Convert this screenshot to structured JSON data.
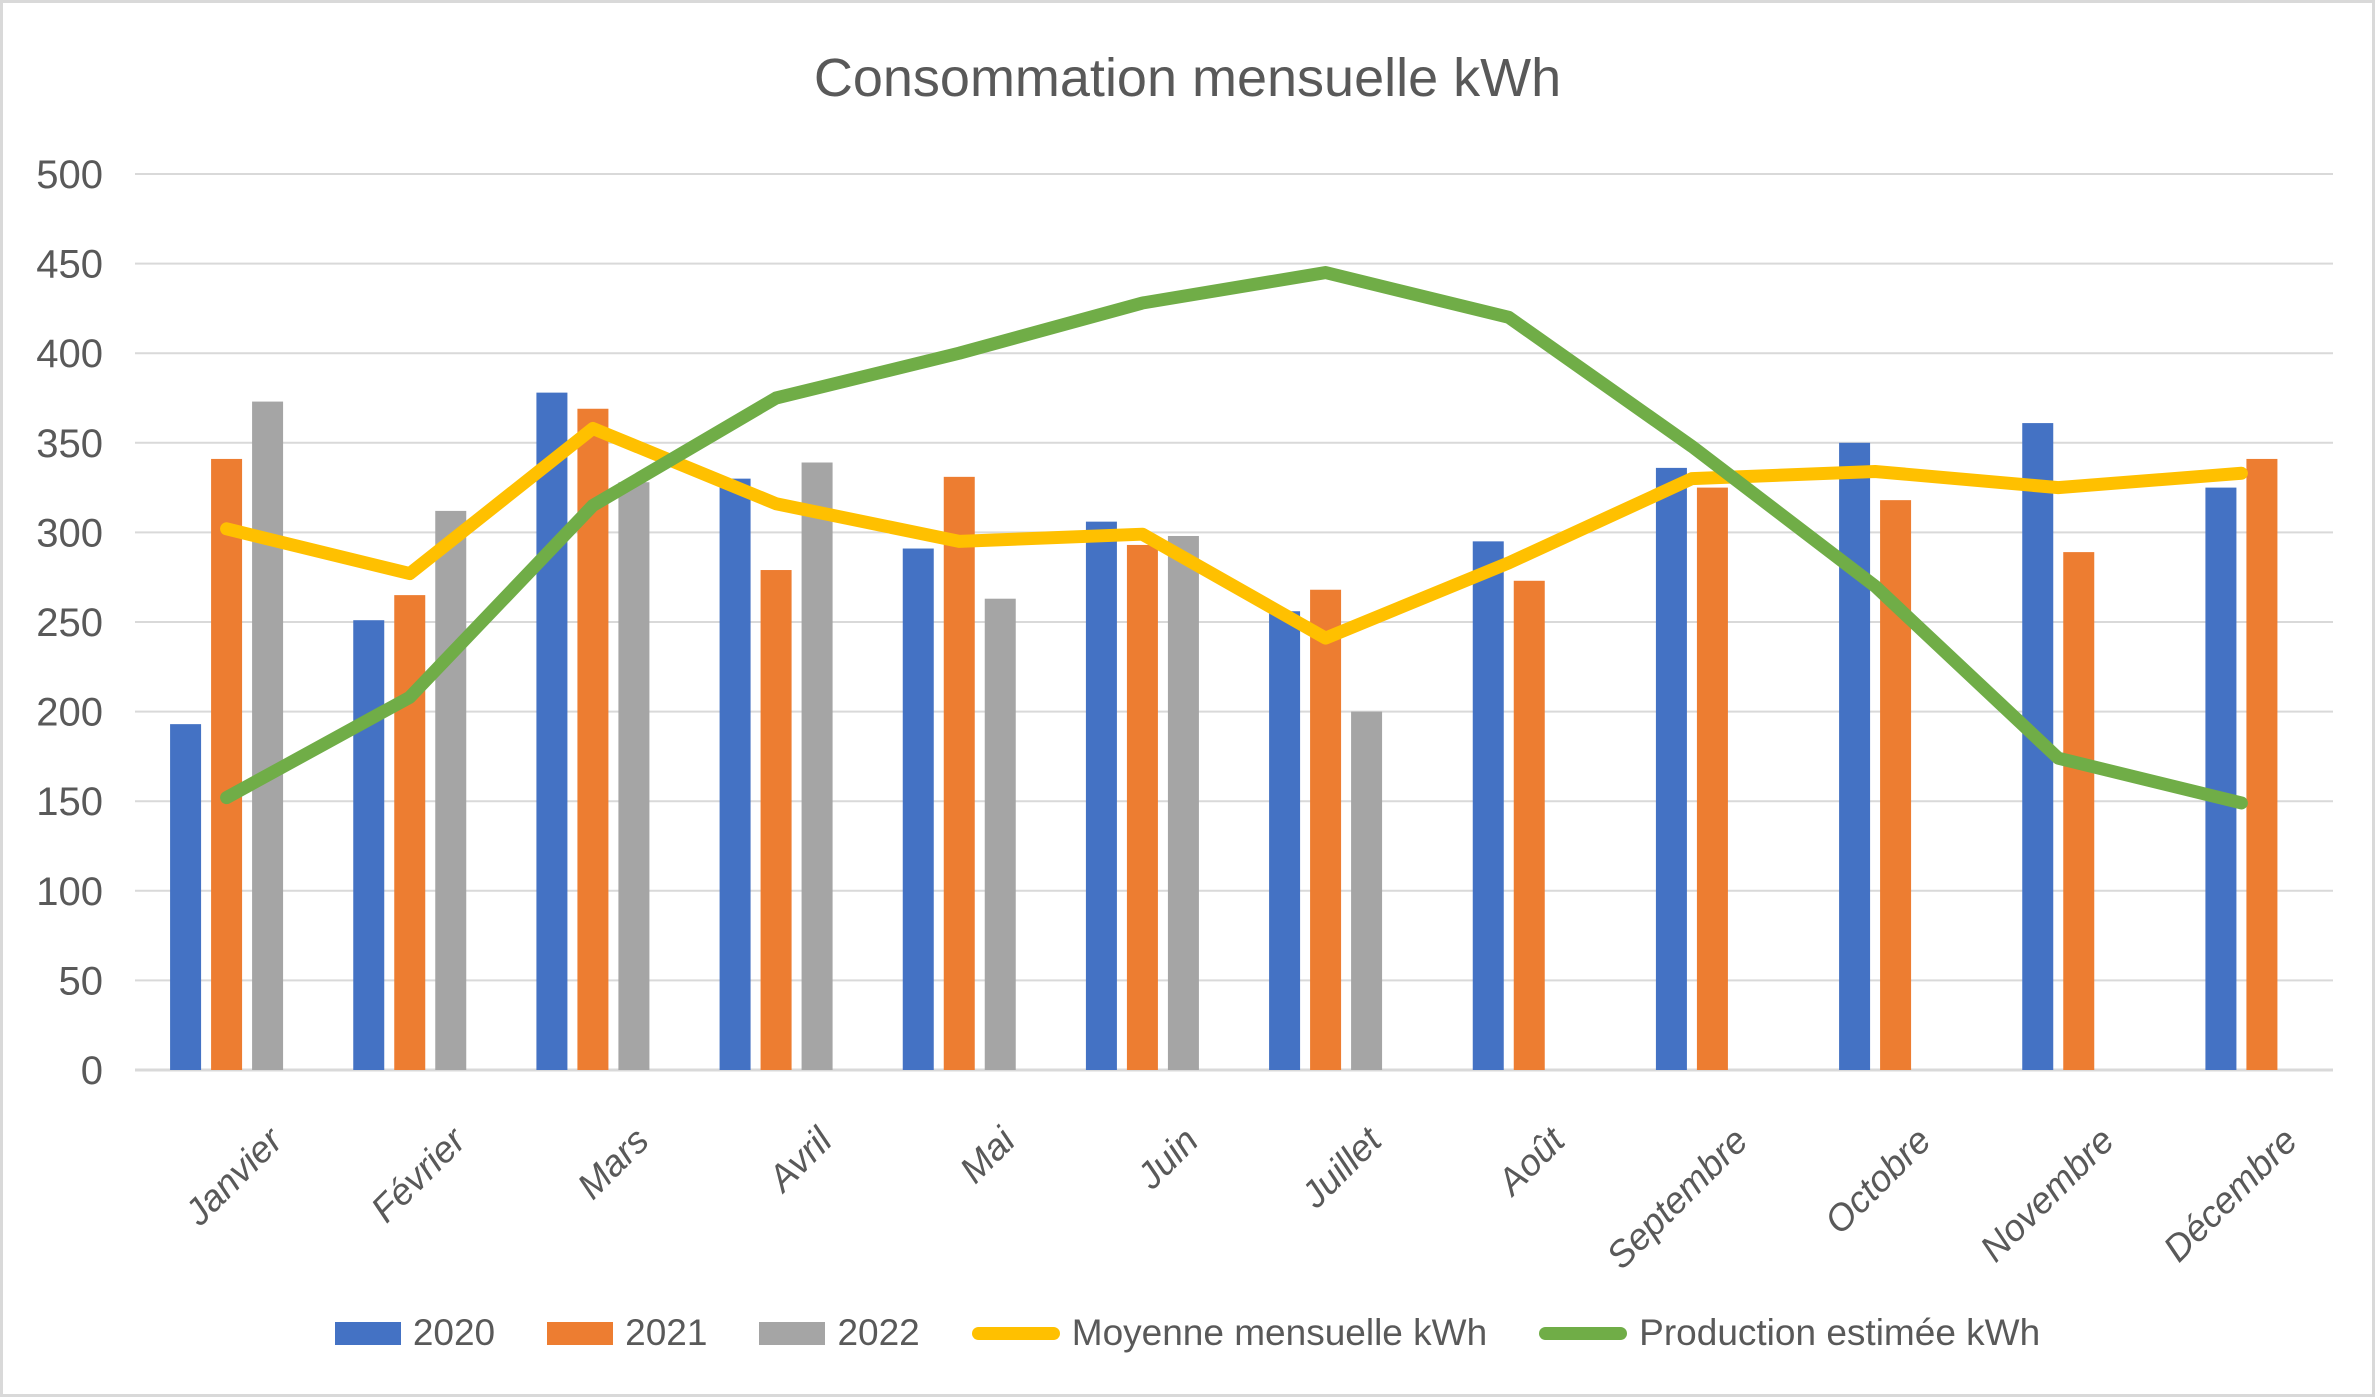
{
  "page": {
    "background": "#FFFFFF",
    "border_color": "#D9D9D9"
  },
  "chart_data": {
    "type": "combo",
    "title": "Consommation mensuelle kWh",
    "categories": [
      "Janvier",
      "Février",
      "Mars",
      "Avril",
      "Mai",
      "Juin",
      "Juillet",
      "Août",
      "Septembre",
      "Octobre",
      "Novembre",
      "Décembre"
    ],
    "y_axis": {
      "min": 0,
      "max": 500,
      "step": 50,
      "tick_labels": [
        "0",
        "50",
        "100",
        "150",
        "200",
        "250",
        "300",
        "350",
        "400",
        "450",
        "500"
      ]
    },
    "grid": true,
    "legend_position": "bottom",
    "text_color": "#595959",
    "gridline_color": "#D9D9D9",
    "series": [
      {
        "name": "2020",
        "type": "bar",
        "color": "#4472C4",
        "values": [
          193,
          251,
          378,
          330,
          291,
          306,
          256,
          295,
          336,
          350,
          361,
          325
        ]
      },
      {
        "name": "2021",
        "type": "bar",
        "color": "#ED7D31",
        "values": [
          341,
          265,
          369,
          279,
          331,
          293,
          268,
          273,
          325,
          318,
          289,
          341
        ]
      },
      {
        "name": "2022",
        "type": "bar",
        "color": "#A5A5A5",
        "values": [
          373,
          312,
          328,
          339,
          263,
          298,
          200,
          null,
          null,
          null,
          null,
          null
        ]
      },
      {
        "name": "Moyenne mensuelle kWh",
        "type": "line",
        "color": "#FFC000",
        "values": [
          302,
          277,
          358,
          316,
          295,
          299,
          241,
          283,
          330,
          334,
          325,
          333
        ]
      },
      {
        "name": "Production estimée kWh",
        "type": "line",
        "color": "#70AD47",
        "values": [
          152,
          208,
          315,
          375,
          400,
          428,
          445,
          420,
          348,
          270,
          174,
          149
        ]
      }
    ]
  }
}
